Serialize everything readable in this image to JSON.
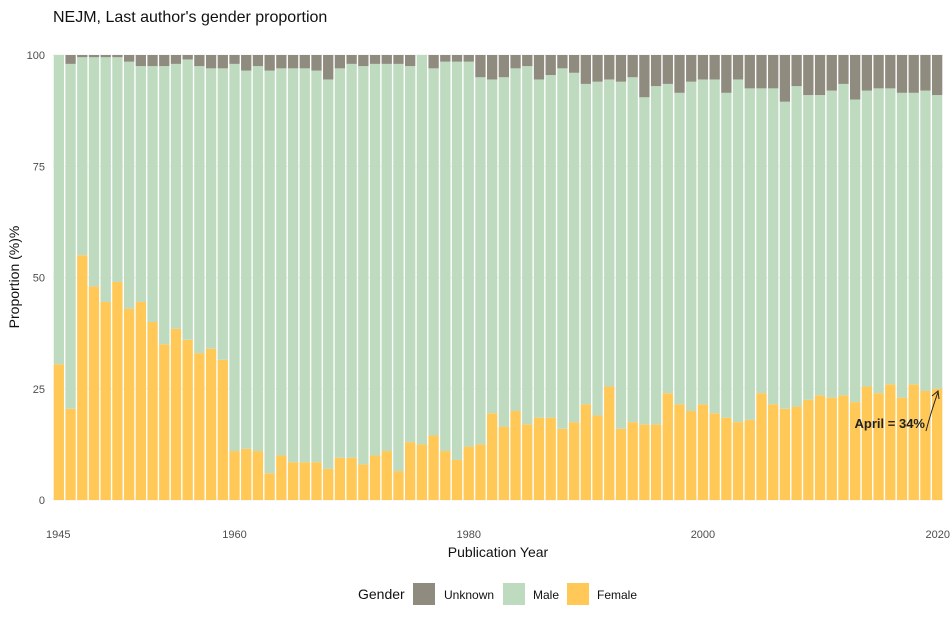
{
  "chart_data": {
    "type": "bar",
    "stacked": true,
    "title": "NEJM, Last author's gender proportion",
    "xlabel": "Publication Year",
    "ylabel": "Proportion (%)%",
    "xlim": [
      1944.5,
      2020.5
    ],
    "ylim": [
      0,
      100
    ],
    "xticks": [
      1945,
      1960,
      1980,
      2000,
      2020
    ],
    "yticks": [
      0,
      25,
      50,
      75,
      100
    ],
    "grid": true,
    "legend": {
      "title": "Gender",
      "position": "bottom",
      "entries": [
        "Unknown",
        "Male",
        "Female"
      ]
    },
    "colors": {
      "Unknown": "#8f8b7f",
      "Male": "#bedbc0",
      "Female": "#ffc857"
    },
    "annotation": {
      "text": "April = 34%",
      "x": 2020,
      "y": 25
    },
    "x": [
      1945,
      1946,
      1947,
      1948,
      1949,
      1950,
      1951,
      1952,
      1953,
      1954,
      1955,
      1956,
      1957,
      1958,
      1959,
      1960,
      1961,
      1962,
      1963,
      1964,
      1965,
      1966,
      1967,
      1968,
      1969,
      1970,
      1971,
      1972,
      1973,
      1974,
      1975,
      1976,
      1977,
      1978,
      1979,
      1980,
      1981,
      1982,
      1983,
      1984,
      1985,
      1986,
      1987,
      1988,
      1989,
      1990,
      1991,
      1992,
      1993,
      1994,
      1995,
      1996,
      1997,
      1998,
      1999,
      2000,
      2001,
      2002,
      2003,
      2004,
      2005,
      2006,
      2007,
      2008,
      2009,
      2010,
      2011,
      2012,
      2013,
      2014,
      2015,
      2016,
      2017,
      2018,
      2019,
      2020
    ],
    "series": [
      {
        "name": "Female",
        "values": [
          30.5,
          20.5,
          55,
          48,
          44.5,
          49,
          43,
          44.5,
          40,
          35,
          38.5,
          36,
          33,
          34,
          31.5,
          11,
          11.5,
          11,
          6,
          10,
          8.5,
          8.5,
          8.5,
          7,
          9.5,
          9.5,
          8,
          10,
          11,
          6.5,
          13,
          12.5,
          14.5,
          11,
          9,
          12,
          12.5,
          19.5,
          16.5,
          20,
          17,
          18.5,
          18.5,
          16,
          17.5,
          21.5,
          19,
          25.5,
          16,
          17.5,
          17,
          17,
          24,
          21.5,
          20,
          21.5,
          19.5,
          18.5,
          17.5,
          18,
          24,
          21.5,
          20.5,
          21,
          22.5,
          23.5,
          23,
          23.5,
          22,
          25.5,
          24,
          26,
          23,
          26,
          24.5,
          25
        ]
      },
      {
        "name": "Male",
        "values": [
          69.5,
          77.5,
          44.5,
          51.5,
          55,
          50.5,
          55.5,
          53,
          57.5,
          62.5,
          59.5,
          63,
          64.5,
          63,
          65.5,
          87,
          85,
          86.5,
          90.5,
          87,
          88.5,
          88.5,
          88,
          87.5,
          87.5,
          88.5,
          89.5,
          88,
          87,
          91.5,
          84.5,
          87.5,
          82.5,
          87.5,
          89.5,
          86.5,
          82.5,
          75,
          78.5,
          77,
          80.5,
          76,
          77,
          81,
          78.5,
          72,
          75,
          69,
          78,
          77.5,
          73.5,
          76,
          69.5,
          70,
          74,
          73,
          75,
          73,
          77,
          74.5,
          68.5,
          71,
          69,
          72,
          68.5,
          67.5,
          69,
          70,
          68,
          66.5,
          68.5,
          66.5,
          68.5,
          65.5,
          67.5,
          66
        ]
      },
      {
        "name": "Unknown",
        "values": [
          0,
          2,
          0.5,
          0.5,
          0.5,
          0.5,
          1.5,
          2.5,
          2.5,
          2.5,
          2,
          1,
          2.5,
          3,
          3,
          2,
          3.5,
          2.5,
          3.5,
          3,
          3,
          3,
          3.5,
          5.5,
          3,
          2,
          2.5,
          2,
          2,
          2,
          2.5,
          0,
          3,
          1.5,
          1.5,
          1.5,
          5,
          5.5,
          5,
          3,
          2.5,
          5.5,
          4.5,
          3,
          4,
          6.5,
          6,
          5.5,
          6,
          5,
          9.5,
          7,
          6.5,
          8.5,
          6,
          5.5,
          5.5,
          8.5,
          5.5,
          7.5,
          7.5,
          7.5,
          10.5,
          7,
          9,
          9,
          8,
          6.5,
          10,
          8,
          7.5,
          7.5,
          8.5,
          8.5,
          8,
          9
        ]
      }
    ]
  }
}
